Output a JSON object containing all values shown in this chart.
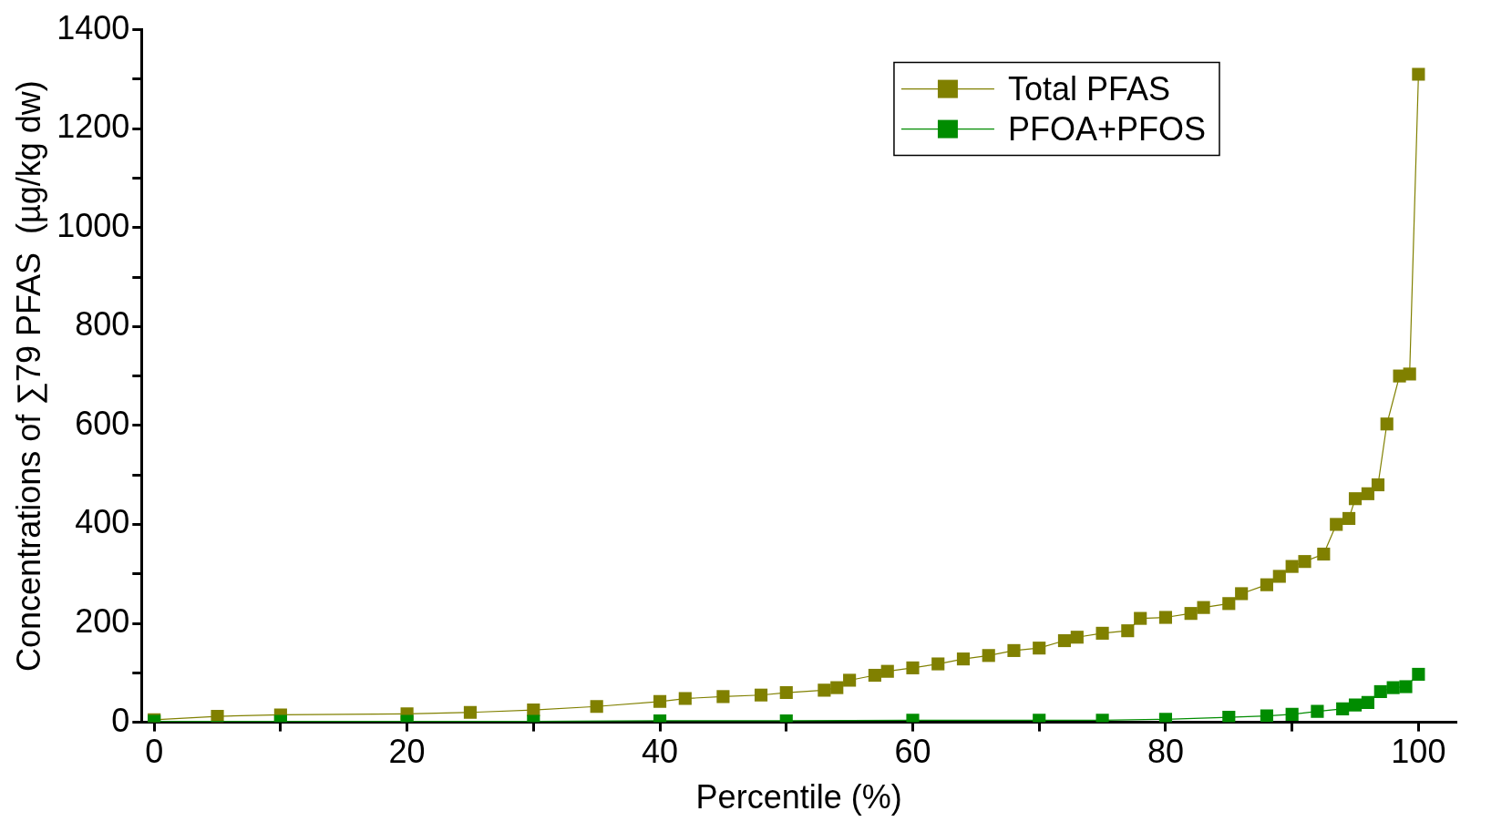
{
  "chart_data": {
    "type": "line",
    "xlabel": "Percentile (%)",
    "ylabel": "Concentrations of ∑79 PFAS  (µg/kg dw)",
    "xlim": [
      -1,
      103
    ],
    "ylim": [
      0,
      1400
    ],
    "xticks": [
      0,
      {
        "value": 10,
        "label": null
      },
      20,
      {
        "value": 30,
        "label": null
      },
      40,
      {
        "value": 50,
        "label": null
      },
      60,
      {
        "value": 70,
        "label": null
      },
      80,
      {
        "value": 90,
        "label": null
      },
      100
    ],
    "yticks": [
      0,
      {
        "value": 100,
        "label": null
      },
      200,
      {
        "value": 300,
        "label": null
      },
      400,
      {
        "value": 500,
        "label": null
      },
      600,
      {
        "value": 700,
        "label": null
      },
      800,
      {
        "value": 900,
        "label": null
      },
      1000,
      {
        "value": 1100,
        "label": null
      },
      1200,
      {
        "value": 1300,
        "label": null
      },
      1400
    ],
    "grid": false,
    "legend": "top right",
    "marker": "square",
    "line_style": "solid",
    "series": [
      {
        "name": "Total PFAS",
        "color": "#808000",
        "x": [
          0,
          5,
          10,
          20,
          25,
          30,
          35,
          40,
          42,
          45,
          48,
          50,
          53,
          54,
          55,
          57,
          58,
          60,
          62,
          64,
          66,
          68,
          70,
          72,
          73,
          75,
          77,
          78,
          80,
          82,
          83,
          85,
          86,
          88,
          89,
          90,
          91,
          92.5,
          93.5,
          94.5,
          95,
          96,
          96.8,
          97.5,
          98.5,
          99.3,
          100
        ],
        "values": [
          5,
          12,
          15,
          17,
          20,
          25,
          32,
          42,
          48,
          52,
          55,
          60,
          65,
          70,
          85,
          95,
          103,
          110,
          118,
          128,
          135,
          145,
          150,
          165,
          172,
          180,
          185,
          210,
          212,
          220,
          232,
          240,
          260,
          278,
          295,
          315,
          325,
          340,
          400,
          412,
          452,
          462,
          480,
          603,
          700,
          704,
          1310
        ]
      },
      {
        "name": "PFOA+PFOS",
        "color": "#008c00",
        "x": [
          0,
          10,
          20,
          30,
          40,
          50,
          60,
          70,
          75,
          80,
          85,
          88,
          90,
          92,
          94,
          95,
          96,
          97,
          98,
          99,
          100
        ],
        "values": [
          2,
          2,
          2,
          2,
          3,
          3,
          4,
          4,
          4,
          6,
          10,
          13,
          16,
          22,
          27,
          35,
          40,
          62,
          70,
          72,
          97
        ]
      }
    ]
  }
}
